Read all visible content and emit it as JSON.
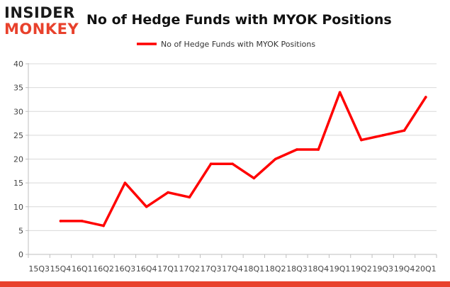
{
  "logo": {
    "line1": "INSIDER",
    "line2": "MONKEY"
  },
  "colors": {
    "series": "#ff0000",
    "grid": "#d9d9d9",
    "axis": "#bfbfbf",
    "bottom_bar": "#e8412c",
    "logo_accent": "#e8412c"
  },
  "chart_data": {
    "type": "line",
    "title": "No of Hedge Funds with MYOK Positions",
    "xlabel": "",
    "ylabel": "",
    "ylim": [
      0,
      40
    ],
    "y_ticks": [
      "0",
      "5",
      "10",
      "15",
      "20",
      "25",
      "30",
      "35",
      "40"
    ],
    "grid": true,
    "legend_position": "top-center",
    "categories": [
      "15Q3",
      "15Q4",
      "16Q1",
      "16Q2",
      "16Q3",
      "16Q4",
      "17Q1",
      "17Q2",
      "17Q3",
      "17Q4",
      "18Q1",
      "18Q2",
      "18Q3",
      "18Q4",
      "19Q1",
      "19Q2",
      "19Q3",
      "19Q4",
      "20Q1"
    ],
    "series": [
      {
        "name": "No of Hedge Funds with MYOK Positions",
        "values": [
          null,
          7,
          7,
          6,
          15,
          10,
          13,
          12,
          19,
          19,
          16,
          20,
          22,
          22,
          34,
          24,
          25,
          26,
          33
        ]
      }
    ]
  }
}
